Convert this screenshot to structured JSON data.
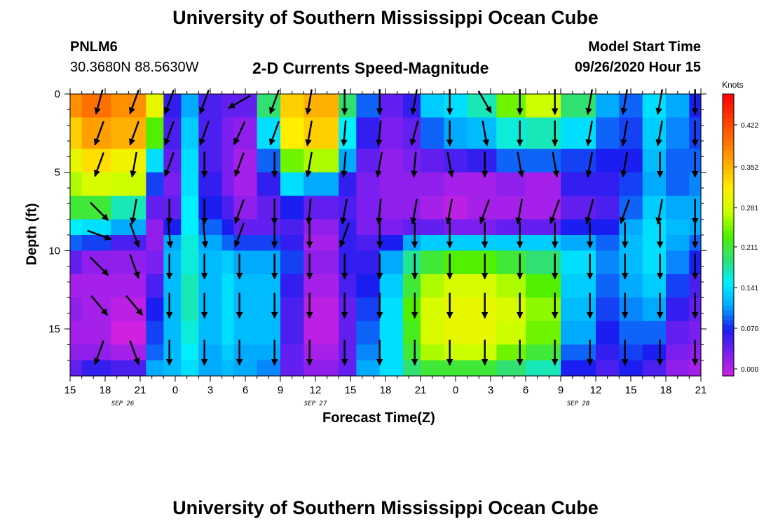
{
  "header": {
    "title": "University of Southern Mississippi Ocean Cube",
    "station": "PNLM6",
    "coords": "30.3680N 88.5630W",
    "subtitle": "2-D Currents Speed-Magnitude",
    "model_start_label": "Model Start Time",
    "model_start_value": "09/26/2020 Hour 15"
  },
  "footer": {
    "title": "University of Southern Mississippi Ocean Cube"
  },
  "chart_data": {
    "type": "heatmap",
    "xlabel": "Forecast Time(Z)",
    "ylabel": "Depth (ft)",
    "x_ticks": [
      "15",
      "18",
      "21",
      "0",
      "3",
      "6",
      "9",
      "12",
      "15",
      "18",
      "21",
      "0",
      "3",
      "6",
      "9",
      "12",
      "15",
      "18",
      "21"
    ],
    "x_range_hours": [
      0,
      54
    ],
    "date_labels": [
      {
        "hour": 4.5,
        "text": "SEP 26"
      },
      {
        "hour": 21,
        "text": "SEP 27"
      },
      {
        "hour": 43.5,
        "text": "SEP 28"
      }
    ],
    "y_ticks": [
      0,
      5,
      10,
      15
    ],
    "ylim": [
      0,
      18
    ],
    "y_inverted": true,
    "colorbar": {
      "unit": "Knots",
      "ticks": [
        "0.422",
        "0.352",
        "0.281",
        "0.211",
        "0.141",
        "0.070",
        "0.000"
      ],
      "range": [
        0,
        0.48
      ],
      "colors": [
        "#d020e0",
        "#7a1ff0",
        "#1b1ef0",
        "#00aaff",
        "#00f0ff",
        "#30e070",
        "#50f000",
        "#ccff00",
        "#ffee00",
        "#ffb000",
        "#ff7000",
        "#ff3a00",
        "#ff0000"
      ]
    },
    "depth_bins": [
      0,
      1.5,
      3.5,
      5,
      6.5,
      8,
      9,
      10,
      11.5,
      13,
      14.5,
      16,
      17,
      18
    ],
    "time_bins": [
      {
        "start": 0,
        "end": 1,
        "speeds": [
          0.38,
          0.34,
          0.3,
          0.27,
          0.22,
          0.16,
          0.1,
          0.05,
          0.02,
          0.03,
          0.02,
          0.03,
          0.05
        ]
      },
      {
        "start": 1,
        "end": 3.5,
        "speeds": [
          0.4,
          0.37,
          0.33,
          0.29,
          0.22,
          0.15,
          0.09,
          0.03,
          0.02,
          0.02,
          0.02,
          0.03,
          0.07
        ]
      },
      {
        "start": 3.5,
        "end": 6.5,
        "speeds": [
          0.38,
          0.36,
          0.31,
          0.28,
          0.18,
          0.12,
          0.06,
          0.03,
          0.02,
          0.01,
          0.0,
          0.02,
          0.06
        ]
      },
      {
        "start": 6.5,
        "end": 8,
        "speeds": [
          0.3,
          0.24,
          0.15,
          0.09,
          0.05,
          0.03,
          0.03,
          0.04,
          0.06,
          0.08,
          0.09,
          0.1,
          0.12
        ]
      },
      {
        "start": 8,
        "end": 9.5,
        "speeds": [
          0.07,
          0.06,
          0.05,
          0.04,
          0.05,
          0.08,
          0.12,
          0.13,
          0.13,
          0.13,
          0.13,
          0.13,
          0.13
        ]
      },
      {
        "start": 9.5,
        "end": 11,
        "speeds": [
          0.12,
          0.14,
          0.15,
          0.15,
          0.16,
          0.16,
          0.17,
          0.17,
          0.18,
          0.18,
          0.17,
          0.16,
          0.15
        ]
      },
      {
        "start": 11,
        "end": 13,
        "speeds": [
          0.06,
          0.06,
          0.06,
          0.07,
          0.08,
          0.1,
          0.12,
          0.13,
          0.13,
          0.13,
          0.13,
          0.12,
          0.12
        ]
      },
      {
        "start": 13,
        "end": 14,
        "speeds": [
          0.05,
          0.04,
          0.04,
          0.04,
          0.06,
          0.08,
          0.1,
          0.14,
          0.15,
          0.15,
          0.15,
          0.14,
          0.13
        ]
      },
      {
        "start": 14,
        "end": 16,
        "speeds": [
          0.05,
          0.03,
          0.02,
          0.02,
          0.03,
          0.05,
          0.09,
          0.12,
          0.13,
          0.13,
          0.13,
          0.12,
          0.12
        ]
      },
      {
        "start": 16,
        "end": 18,
        "speeds": [
          0.2,
          0.15,
          0.1,
          0.07,
          0.05,
          0.05,
          0.09,
          0.12,
          0.13,
          0.13,
          0.13,
          0.12,
          0.11
        ]
      },
      {
        "start": 18,
        "end": 20,
        "speeds": [
          0.34,
          0.32,
          0.25,
          0.15,
          0.08,
          0.06,
          0.07,
          0.09,
          0.07,
          0.06,
          0.06,
          0.05,
          0.05
        ]
      },
      {
        "start": 20,
        "end": 23,
        "speeds": [
          0.36,
          0.34,
          0.27,
          0.12,
          0.05,
          0.03,
          0.02,
          0.03,
          0.02,
          0.01,
          0.01,
          0.02,
          0.03
        ]
      },
      {
        "start": 23,
        "end": 24.5,
        "speeds": [
          0.2,
          0.16,
          0.12,
          0.07,
          0.06,
          0.07,
          0.07,
          0.07,
          0.06,
          0.05,
          0.05,
          0.05,
          0.05
        ]
      },
      {
        "start": 24.5,
        "end": 26.5,
        "speeds": [
          0.1,
          0.07,
          0.05,
          0.04,
          0.04,
          0.04,
          0.06,
          0.07,
          0.08,
          0.09,
          0.1,
          0.11,
          0.12
        ]
      },
      {
        "start": 26.5,
        "end": 28.5,
        "speeds": [
          0.05,
          0.04,
          0.03,
          0.03,
          0.03,
          0.04,
          0.08,
          0.12,
          0.14,
          0.15,
          0.15,
          0.15,
          0.15
        ]
      },
      {
        "start": 28.5,
        "end": 30,
        "speeds": [
          0.07,
          0.05,
          0.04,
          0.03,
          0.03,
          0.05,
          0.12,
          0.19,
          0.22,
          0.24,
          0.23,
          0.22,
          0.2
        ]
      },
      {
        "start": 30,
        "end": 32,
        "speeds": [
          0.14,
          0.1,
          0.05,
          0.03,
          0.02,
          0.05,
          0.14,
          0.22,
          0.27,
          0.29,
          0.29,
          0.27,
          0.22
        ]
      },
      {
        "start": 32,
        "end": 34,
        "speeds": [
          0.15,
          0.12,
          0.06,
          0.02,
          0.01,
          0.04,
          0.14,
          0.24,
          0.29,
          0.3,
          0.3,
          0.28,
          0.22
        ]
      },
      {
        "start": 34,
        "end": 36.5,
        "speeds": [
          0.18,
          0.13,
          0.07,
          0.02,
          0.02,
          0.04,
          0.14,
          0.24,
          0.29,
          0.3,
          0.3,
          0.28,
          0.22
        ]
      },
      {
        "start": 36.5,
        "end": 39,
        "speeds": [
          0.25,
          0.17,
          0.1,
          0.03,
          0.02,
          0.05,
          0.14,
          0.22,
          0.27,
          0.29,
          0.28,
          0.25,
          0.2
        ]
      },
      {
        "start": 39,
        "end": 42,
        "speeds": [
          0.28,
          0.18,
          0.1,
          0.02,
          0.02,
          0.05,
          0.14,
          0.2,
          0.24,
          0.26,
          0.25,
          0.22,
          0.18
        ]
      },
      {
        "start": 42,
        "end": 45,
        "speeds": [
          0.2,
          0.15,
          0.09,
          0.07,
          0.05,
          0.08,
          0.12,
          0.15,
          0.14,
          0.13,
          0.12,
          0.1,
          0.08
        ]
      },
      {
        "start": 45,
        "end": 47,
        "speeds": [
          0.12,
          0.1,
          0.08,
          0.07,
          0.06,
          0.08,
          0.1,
          0.11,
          0.1,
          0.09,
          0.08,
          0.07,
          0.06
        ]
      },
      {
        "start": 47,
        "end": 49,
        "speeds": [
          0.1,
          0.09,
          0.08,
          0.09,
          0.1,
          0.12,
          0.13,
          0.13,
          0.12,
          0.11,
          0.1,
          0.09,
          0.08
        ]
      },
      {
        "start": 49,
        "end": 51,
        "speeds": [
          0.15,
          0.14,
          0.13,
          0.12,
          0.14,
          0.15,
          0.15,
          0.15,
          0.14,
          0.12,
          0.1,
          0.08,
          0.06
        ]
      },
      {
        "start": 51,
        "end": 53,
        "speeds": [
          0.12,
          0.11,
          0.1,
          0.1,
          0.12,
          0.13,
          0.12,
          0.11,
          0.09,
          0.07,
          0.05,
          0.04,
          0.03
        ]
      },
      {
        "start": 53,
        "end": 54,
        "speeds": [
          0.08,
          0.09,
          0.1,
          0.11,
          0.12,
          0.12,
          0.1,
          0.08,
          0.06,
          0.05,
          0.04,
          0.03,
          0.02
        ]
      }
    ],
    "vector_times": [
      2.5,
      5.5,
      8.5,
      11.5,
      14.5,
      17.5,
      20.5,
      23.5,
      26.5,
      29.5,
      32.5,
      35.5,
      38.5,
      41.5,
      44.5,
      47.5,
      50.5,
      53.5
    ],
    "vector_depths": [
      0.5,
      2.5,
      4.5,
      7.5,
      9,
      11,
      13.5,
      16.5
    ],
    "vector_angles_deg": [
      [
        195,
        200,
        200,
        135,
        110,
        135,
        140,
        200
      ],
      [
        200,
        200,
        190,
        190,
        160,
        160,
        140,
        160
      ],
      [
        200,
        200,
        200,
        180,
        175,
        180,
        180,
        180
      ],
      [
        200,
        200,
        180,
        180,
        175,
        180,
        180,
        180
      ],
      [
        240,
        205,
        200,
        200,
        200,
        180,
        180,
        180
      ],
      [
        200,
        200,
        180,
        180,
        180,
        180,
        180,
        180
      ],
      [
        190,
        190,
        190,
        185,
        180,
        180,
        180,
        180
      ],
      [
        180,
        185,
        185,
        190,
        200,
        180,
        180,
        180
      ],
      [
        180,
        185,
        190,
        185,
        180,
        180,
        180,
        180
      ],
      [
        190,
        195,
        185,
        190,
        180,
        180,
        180,
        180
      ],
      [
        180,
        180,
        170,
        190,
        180,
        180,
        180,
        180
      ],
      [
        150,
        170,
        180,
        200,
        180,
        180,
        180,
        180
      ],
      [
        180,
        180,
        170,
        190,
        180,
        180,
        180,
        180
      ],
      [
        180,
        180,
        170,
        200,
        180,
        180,
        180,
        180
      ],
      [
        190,
        190,
        190,
        195,
        180,
        180,
        180,
        180
      ],
      [
        190,
        190,
        190,
        200,
        180,
        180,
        180,
        180
      ],
      [
        190,
        190,
        180,
        190,
        180,
        180,
        180,
        180
      ],
      [
        180,
        180,
        180,
        180,
        180,
        180,
        180,
        180
      ]
    ]
  }
}
